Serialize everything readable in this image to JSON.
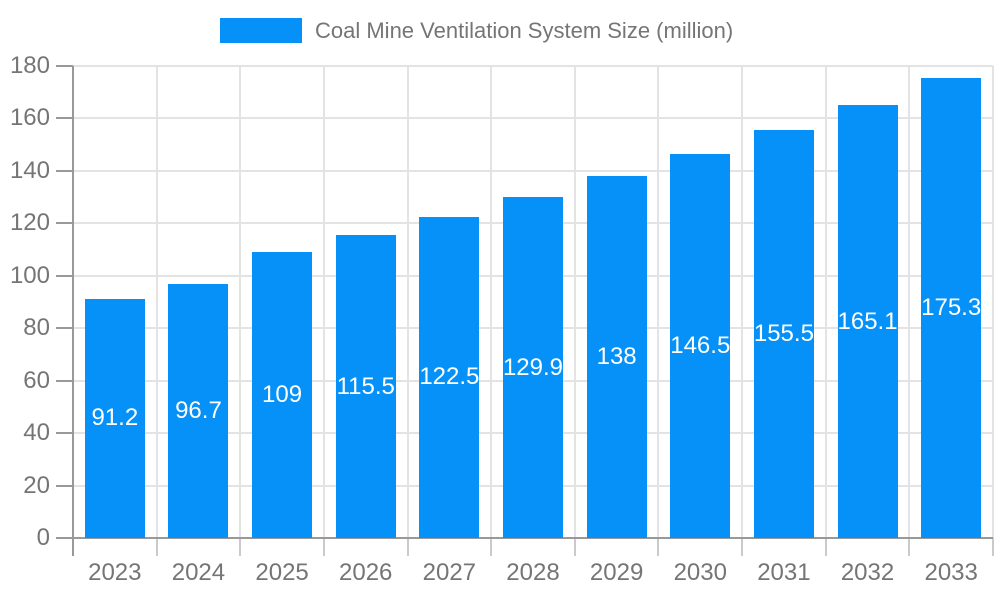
{
  "legend": {
    "label": "Coal Mine Ventilation System Size (million)"
  },
  "colors": {
    "bar": "#0691f8",
    "axis_line": "#999999",
    "grid_line": "#e3e3e3",
    "boundary_tick": "#cacaca",
    "tick_label": "#757575",
    "legend_text": "#757575",
    "value_label": "#ffffff",
    "background": "#ffffff"
  },
  "chart_data": {
    "type": "bar",
    "title": "Coal Mine Ventilation System Size (million)",
    "categories": [
      "2023",
      "2024",
      "2025",
      "2026",
      "2027",
      "2028",
      "2029",
      "2030",
      "2031",
      "2032",
      "2033"
    ],
    "values": [
      91.2,
      96.7,
      109,
      115.5,
      122.5,
      129.9,
      138,
      146.5,
      155.5,
      165.1,
      175.3
    ],
    "value_labels": [
      "91.2",
      "96.7",
      "109",
      "115.5",
      "122.5",
      "129.9",
      "138",
      "146.5",
      "155.5",
      "165.1",
      "175.3"
    ],
    "xlabel": "",
    "ylabel": "",
    "ylim": [
      0,
      180
    ],
    "yticks": [
      0,
      20,
      40,
      60,
      80,
      100,
      120,
      140,
      160,
      180
    ],
    "grid": true,
    "legend_position": "top",
    "value_label_position": "inside-center"
  }
}
